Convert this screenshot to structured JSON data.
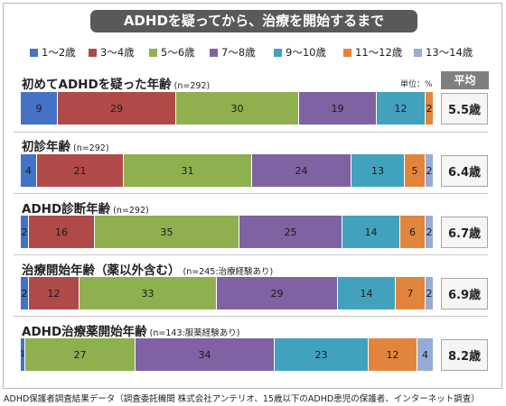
{
  "chart_data": {
    "type": "bar",
    "orientation": "horizontal-stacked-100",
    "title": "ADHDを疑ってから、治療を開始するまで",
    "unit_label": "単位：%",
    "average_header": "平均",
    "series": [
      {
        "name": "1〜2歳",
        "color": "#4472c4"
      },
      {
        "name": "3〜4歳",
        "color": "#b04a48"
      },
      {
        "name": "5〜6歳",
        "color": "#8fb04f"
      },
      {
        "name": "7〜8歳",
        "color": "#7e62a1"
      },
      {
        "name": "9〜10歳",
        "color": "#42a2be"
      },
      {
        "name": "11〜12歳",
        "color": "#e2853c"
      },
      {
        "name": "13〜14歳",
        "color": "#95add6"
      }
    ],
    "categories": [
      {
        "label": "初めてADHDを疑った年齢",
        "n": "(n=292)",
        "values": [
          9,
          29,
          30,
          19,
          12,
          2,
          0
        ],
        "average": "5.5歳"
      },
      {
        "label": "初診年齢",
        "n": "(n=292)",
        "values": [
          4,
          21,
          31,
          24,
          13,
          5,
          2
        ],
        "average": "6.4歳"
      },
      {
        "label": "ADHD診断年齢",
        "n": "(n=292)",
        "values": [
          2,
          16,
          35,
          25,
          14,
          6,
          2
        ],
        "average": "6.7歳"
      },
      {
        "label": "治療開始年齢（薬以外含む）",
        "n": "(n=245:治療経験あり)",
        "values": [
          2,
          12,
          33,
          29,
          14,
          7,
          2
        ],
        "average": "6.9歳"
      },
      {
        "label": "ADHD治療薬開始年齢",
        "n": "(n=143:服薬経験あり)",
        "values": [
          1,
          0,
          27,
          34,
          23,
          12,
          4
        ],
        "average": "8.2歳"
      }
    ]
  },
  "footer": "ADHD保護者調査結果データ（調査委託機関 株式会社アンテリオ、15歳以下のADHD患児の保護者、インターネット調査）"
}
